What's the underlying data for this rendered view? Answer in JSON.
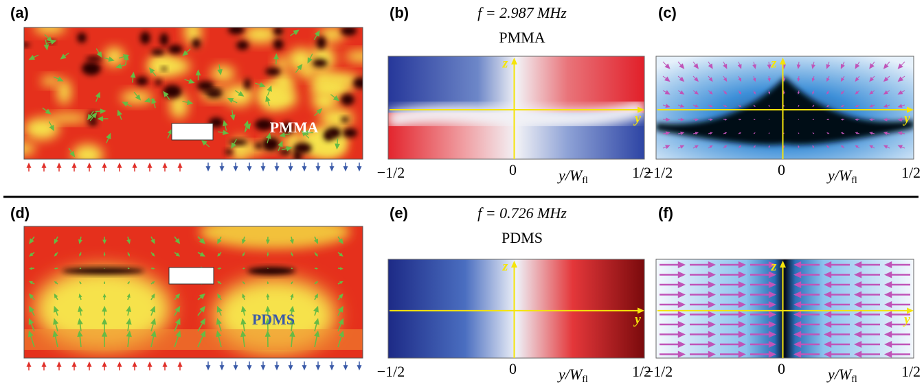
{
  "panels": [
    {
      "label": "(a)",
      "material": "PMMA"
    },
    {
      "label": "(b)",
      "frequency": "f = 2.987 MHz",
      "material": "PMMA",
      "z_axis": "z",
      "y_axis": "y",
      "ticks": [
        "−1/2",
        "0",
        "1/2"
      ],
      "axis_label": {
        "main": "y/W",
        "sub": "fl"
      }
    },
    {
      "label": "(c)",
      "z_axis": "z",
      "y_axis": "y",
      "ticks": [
        "−1/2",
        "0",
        "1/2"
      ],
      "axis_label": {
        "main": "y/W",
        "sub": "fl"
      }
    },
    {
      "label": "(d)",
      "material": "PDMS"
    },
    {
      "label": "(e)",
      "frequency": "f = 0.726 MHz",
      "material": "PDMS",
      "z_axis": "z",
      "y_axis": "y",
      "ticks": [
        "−1/2",
        "0",
        "1/2"
      ],
      "axis_label": {
        "main": "y/W",
        "sub": "fl"
      }
    },
    {
      "label": "(f)",
      "z_axis": "z",
      "y_axis": "y",
      "ticks": [
        "−1/2",
        "0",
        "1/2"
      ],
      "axis_label": {
        "main": "y/W",
        "sub": "fl"
      }
    }
  ]
}
